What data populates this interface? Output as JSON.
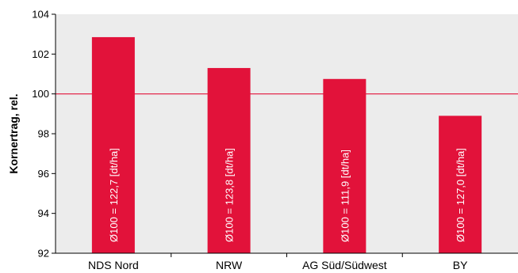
{
  "chart_data": {
    "type": "bar",
    "categories": [
      "NDS Nord",
      "NRW",
      "AG Süd/Südwest",
      "BY"
    ],
    "values": [
      102.85,
      101.3,
      100.75,
      98.9
    ],
    "bar_labels": [
      "Ø100 = 122,7 [dt/ha]",
      "Ø100 = 123,8 [dt/ha]",
      "Ø100 = 111,9 [dt/ha]",
      "Ø100 = 127,0 [dt/ha]"
    ],
    "title": "",
    "xlabel": "",
    "ylabel": "Kornertrag, rel.",
    "ylim": [
      92,
      104
    ],
    "yticks": [
      "92",
      "94",
      "96",
      "98",
      "100",
      "102",
      "104"
    ],
    "reference_line": 100,
    "grid": false,
    "colors": {
      "plot_background": "#ececec",
      "bar": "#e2123a",
      "reference_line": "#e2123a",
      "axis": "#000000"
    }
  }
}
